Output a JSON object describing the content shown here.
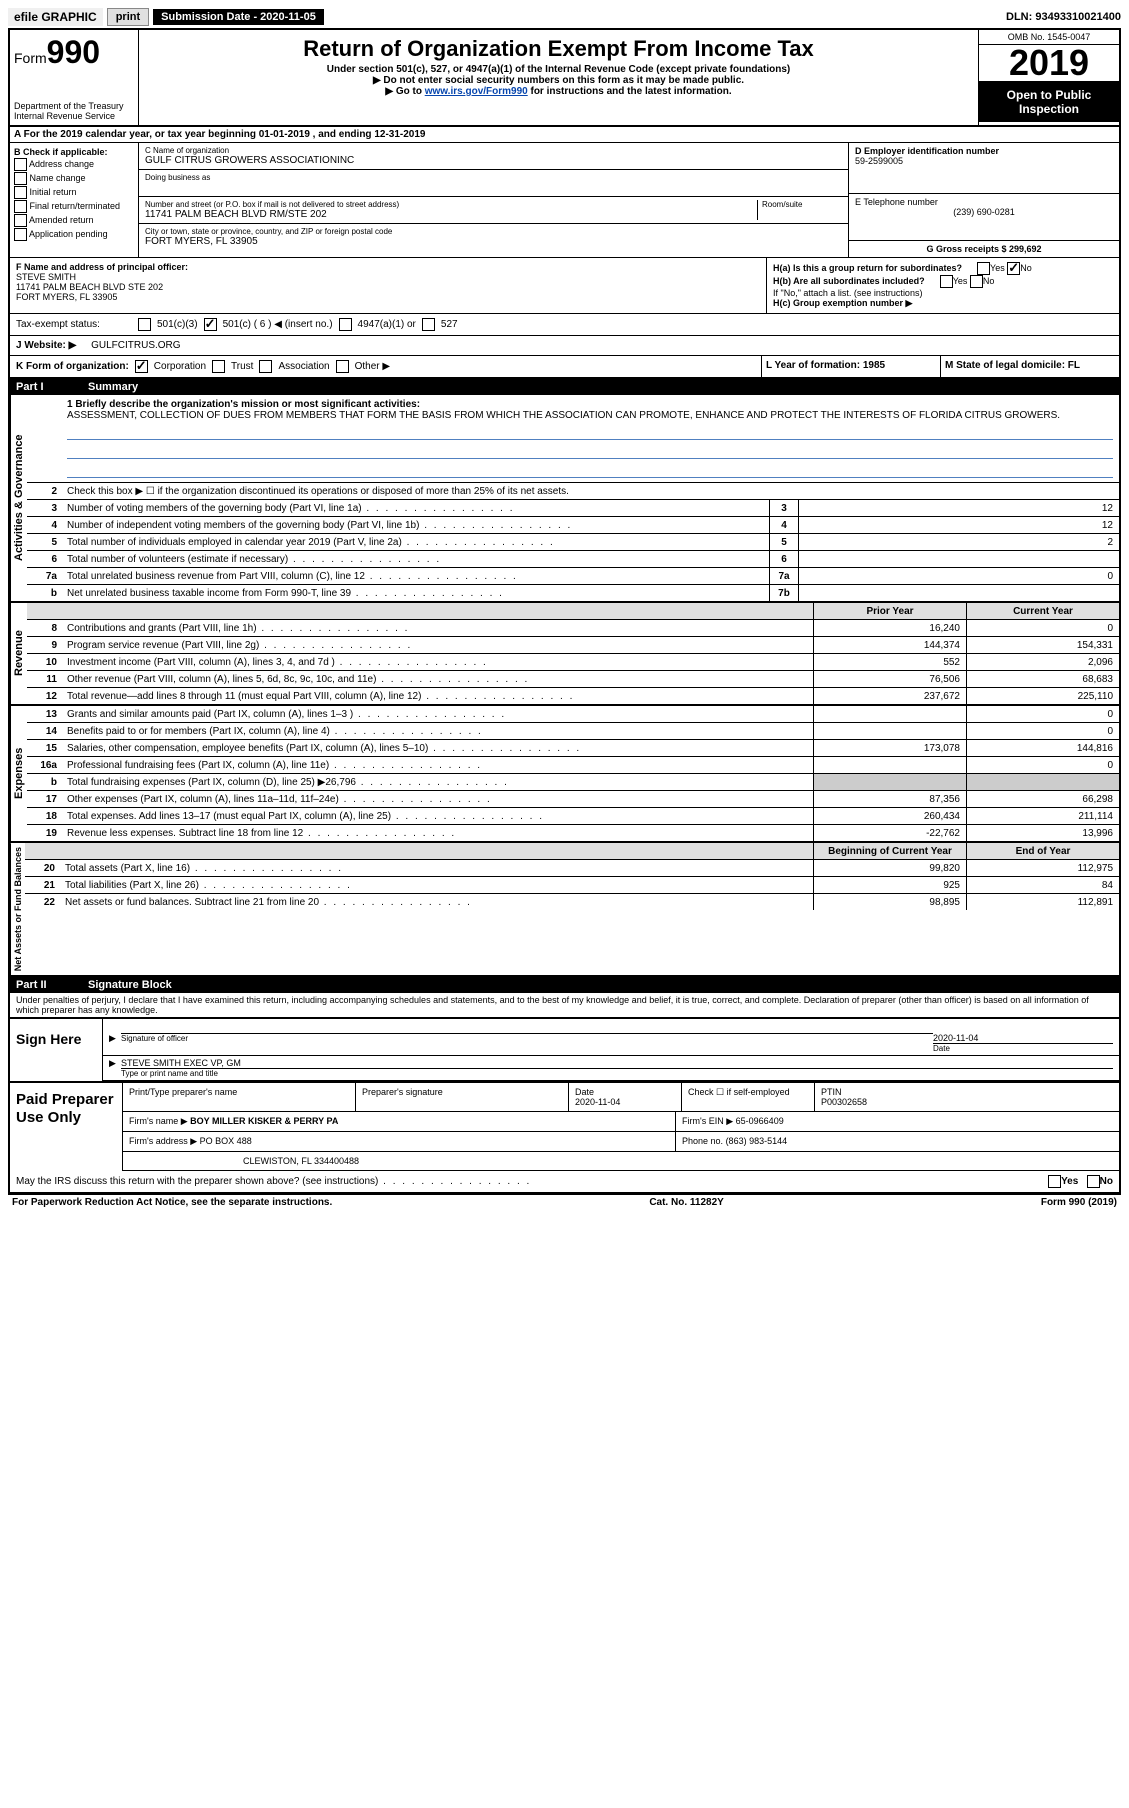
{
  "topbar": {
    "efile": "efile GRAPHIC",
    "print": "print",
    "subdate_label": "Submission Date - 2020-11-05",
    "dln": "DLN: 93493310021400"
  },
  "header": {
    "form_label": "Form",
    "form_num": "990",
    "dept": "Department of the Treasury",
    "irs": "Internal Revenue Service",
    "title": "Return of Organization Exempt From Income Tax",
    "sub1": "Under section 501(c), 527, or 4947(a)(1) of the Internal Revenue Code (except private foundations)",
    "sub2": "▶ Do not enter social security numbers on this form as it may be made public.",
    "sub3_pre": "▶ Go to ",
    "sub3_link": "www.irs.gov/Form990",
    "sub3_post": " for instructions and the latest information.",
    "omb": "OMB No. 1545-0047",
    "year": "2019",
    "open": "Open to Public Inspection"
  },
  "rowA": "A For the 2019 calendar year, or tax year beginning 01-01-2019   , and ending 12-31-2019",
  "boxB": {
    "title": "B Check if applicable:",
    "opts": [
      "Address change",
      "Name change",
      "Initial return",
      "Final return/terminated",
      "Amended return",
      "Application pending"
    ]
  },
  "boxC": {
    "name_label": "C Name of organization",
    "name": "GULF CITRUS GROWERS ASSOCIATIONINC",
    "dba_label": "Doing business as",
    "addr_label": "Number and street (or P.O. box if mail is not delivered to street address)",
    "room_label": "Room/suite",
    "addr": "11741 PALM BEACH BLVD RM/STE 202",
    "city_label": "City or town, state or province, country, and ZIP or foreign postal code",
    "city": "FORT MYERS, FL  33905"
  },
  "boxD": {
    "label": "D Employer identification number",
    "val": "59-2599005"
  },
  "boxE": {
    "label": "E Telephone number",
    "val": "(239) 690-0281"
  },
  "boxG": {
    "label": "G Gross receipts $ 299,692"
  },
  "boxF": {
    "label": "F  Name and address of principal officer:",
    "name": "STEVE SMITH",
    "addr1": "11741 PALM BEACH BLVD STE 202",
    "addr2": "FORT MYERS, FL  33905"
  },
  "boxH": {
    "ha": "H(a)  Is this a group return for subordinates?",
    "hb": "H(b)  Are all subordinates included?",
    "hb_note": "If \"No,\" attach a list. (see instructions)",
    "hc": "H(c)  Group exemption number ▶",
    "yes": "Yes",
    "no": "No"
  },
  "taxexempt": {
    "label": "Tax-exempt status:",
    "o1": "501(c)(3)",
    "o2": "501(c) ( 6 ) ◀ (insert no.)",
    "o3": "4947(a)(1) or",
    "o4": "527"
  },
  "rowJ": {
    "label": "J   Website: ▶",
    "val": "GULFCITRUS.ORG"
  },
  "rowK": {
    "label": "K Form of organization:",
    "corp": "Corporation",
    "trust": "Trust",
    "assoc": "Association",
    "other": "Other ▶"
  },
  "rowL": {
    "label": "L Year of formation: 1985"
  },
  "rowM": {
    "label": "M State of legal domicile: FL"
  },
  "part1": {
    "num": "Part I",
    "title": "Summary"
  },
  "mission": {
    "label": "1  Briefly describe the organization's mission or most significant activities:",
    "text": "ASSESSMENT, COLLECTION OF DUES FROM MEMBERS THAT FORM THE BASIS FROM WHICH THE ASSOCIATION CAN PROMOTE, ENHANCE AND PROTECT THE INTERESTS OF FLORIDA CITRUS GROWERS."
  },
  "line2": "Check this box ▶ ☐  if the organization discontinued its operations or disposed of more than 25% of its net assets.",
  "governance": {
    "label": "Activities & Governance",
    "rows": [
      {
        "n": "3",
        "d": "Number of voting members of the governing body (Part VI, line 1a)",
        "b": "3",
        "v": "12"
      },
      {
        "n": "4",
        "d": "Number of independent voting members of the governing body (Part VI, line 1b)",
        "b": "4",
        "v": "12"
      },
      {
        "n": "5",
        "d": "Total number of individuals employed in calendar year 2019 (Part V, line 2a)",
        "b": "5",
        "v": "2"
      },
      {
        "n": "6",
        "d": "Total number of volunteers (estimate if necessary)",
        "b": "6",
        "v": ""
      },
      {
        "n": "7a",
        "d": "Total unrelated business revenue from Part VIII, column (C), line 12",
        "b": "7a",
        "v": "0"
      },
      {
        "n": "b",
        "d": "Net unrelated business taxable income from Form 990-T, line 39",
        "b": "7b",
        "v": ""
      }
    ]
  },
  "colhdr": {
    "prior": "Prior Year",
    "current": "Current Year"
  },
  "revenue": {
    "label": "Revenue",
    "rows": [
      {
        "n": "8",
        "d": "Contributions and grants (Part VIII, line 1h)",
        "p": "16,240",
        "c": "0"
      },
      {
        "n": "9",
        "d": "Program service revenue (Part VIII, line 2g)",
        "p": "144,374",
        "c": "154,331"
      },
      {
        "n": "10",
        "d": "Investment income (Part VIII, column (A), lines 3, 4, and 7d )",
        "p": "552",
        "c": "2,096"
      },
      {
        "n": "11",
        "d": "Other revenue (Part VIII, column (A), lines 5, 6d, 8c, 9c, 10c, and 11e)",
        "p": "76,506",
        "c": "68,683"
      },
      {
        "n": "12",
        "d": "Total revenue—add lines 8 through 11 (must equal Part VIII, column (A), line 12)",
        "p": "237,672",
        "c": "225,110"
      }
    ]
  },
  "expenses": {
    "label": "Expenses",
    "rows": [
      {
        "n": "13",
        "d": "Grants and similar amounts paid (Part IX, column (A), lines 1–3 )",
        "p": "",
        "c": "0"
      },
      {
        "n": "14",
        "d": "Benefits paid to or for members (Part IX, column (A), line 4)",
        "p": "",
        "c": "0"
      },
      {
        "n": "15",
        "d": "Salaries, other compensation, employee benefits (Part IX, column (A), lines 5–10)",
        "p": "173,078",
        "c": "144,816"
      },
      {
        "n": "16a",
        "d": "Professional fundraising fees (Part IX, column (A), line 11e)",
        "p": "",
        "c": "0"
      },
      {
        "n": "b",
        "d": "Total fundraising expenses (Part IX, column (D), line 25) ▶26,796",
        "p": "GRAY",
        "c": "GRAY"
      },
      {
        "n": "17",
        "d": "Other expenses (Part IX, column (A), lines 11a–11d, 11f–24e)",
        "p": "87,356",
        "c": "66,298"
      },
      {
        "n": "18",
        "d": "Total expenses. Add lines 13–17 (must equal Part IX, column (A), line 25)",
        "p": "260,434",
        "c": "211,114"
      },
      {
        "n": "19",
        "d": "Revenue less expenses. Subtract line 18 from line 12",
        "p": "-22,762",
        "c": "13,996"
      }
    ]
  },
  "netassets": {
    "label": "Net Assets or Fund Balances",
    "hdr_begin": "Beginning of Current Year",
    "hdr_end": "End of Year",
    "rows": [
      {
        "n": "20",
        "d": "Total assets (Part X, line 16)",
        "p": "99,820",
        "c": "112,975"
      },
      {
        "n": "21",
        "d": "Total liabilities (Part X, line 26)",
        "p": "925",
        "c": "84"
      },
      {
        "n": "22",
        "d": "Net assets or fund balances. Subtract line 21 from line 20",
        "p": "98,895",
        "c": "112,891"
      }
    ]
  },
  "part2": {
    "num": "Part II",
    "title": "Signature Block"
  },
  "penalties": "Under penalties of perjury, I declare that I have examined this return, including accompanying schedules and statements, and to the best of my knowledge and belief, it is true, correct, and complete. Declaration of preparer (other than officer) is based on all information of which preparer has any knowledge.",
  "sign": {
    "here": "Sign Here",
    "sig_label": "Signature of officer",
    "date_label": "Date",
    "date_val": "2020-11-04",
    "name": "STEVE SMITH  EXEC VP, GM",
    "name_label": "Type or print name and title"
  },
  "prep": {
    "title": "Paid Preparer Use Only",
    "r1": {
      "c1": "Print/Type preparer's name",
      "c2": "Preparer's signature",
      "c3": "Date",
      "c3v": "2020-11-04",
      "c4": "Check ☐ if self-employed",
      "c5": "PTIN",
      "c5v": "P00302658"
    },
    "r2": {
      "label": "Firm's name    ▶",
      "val": "BOY MILLER KISKER & PERRY PA",
      "ein_label": "Firm's EIN ▶",
      "ein": "65-0966409"
    },
    "r3": {
      "label": "Firm's address ▶",
      "val": "PO BOX 488",
      "phone_label": "Phone no.",
      "phone": "(863) 983-5144"
    },
    "r4": {
      "val": "CLEWISTON, FL  334400488"
    }
  },
  "discuss": "May the IRS discuss this return with the preparer shown above? (see instructions)",
  "footer": {
    "left": "For Paperwork Reduction Act Notice, see the separate instructions.",
    "mid": "Cat. No. 11282Y",
    "right": "Form 990 (2019)"
  }
}
